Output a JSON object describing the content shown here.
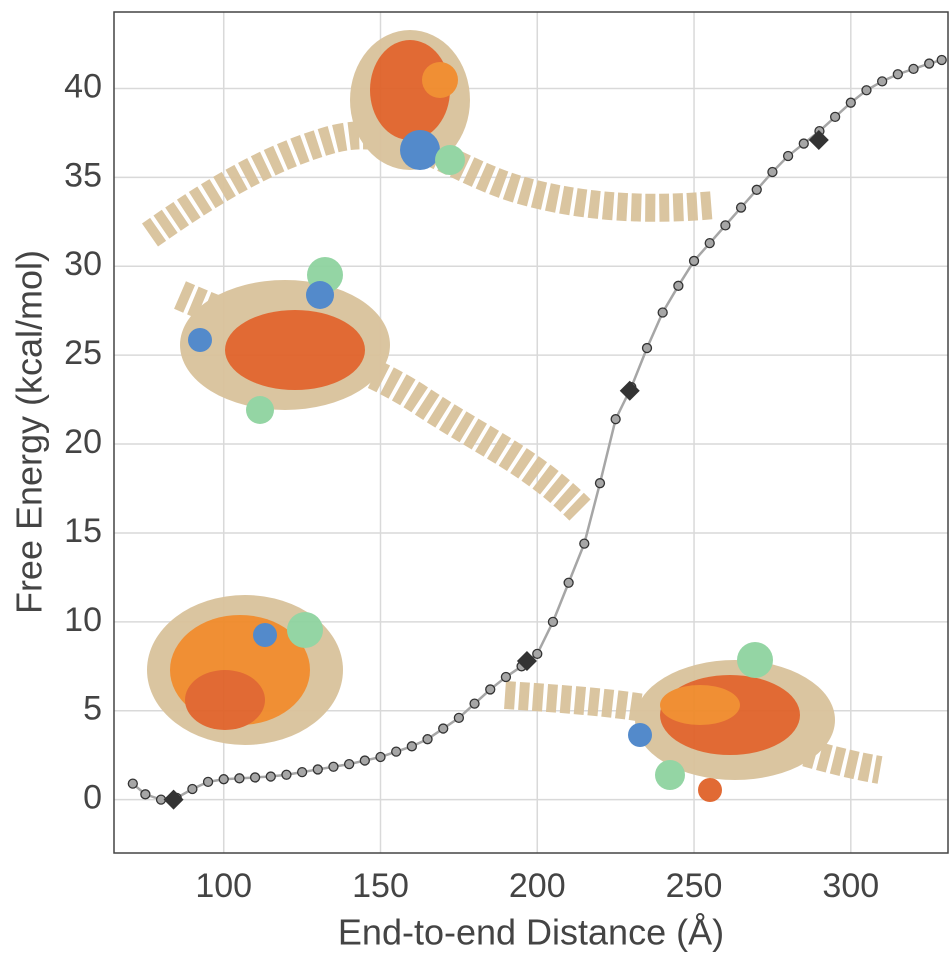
{
  "chart_data": {
    "type": "line",
    "xlabel": "End-to-end Distance (Å)",
    "ylabel": "Free Energy (kcal/mol)",
    "xlim": [
      65,
      331
    ],
    "ylim": [
      -3,
      44.3
    ],
    "xticks": [
      100,
      150,
      200,
      250,
      300
    ],
    "yticks": [
      0,
      5,
      10,
      15,
      20,
      25,
      30,
      35,
      40
    ],
    "grid": true,
    "series": [
      {
        "color": "#a6a6a6",
        "x": [
          71,
          75,
          80,
          85,
          90,
          95,
          100,
          105,
          110,
          115,
          120,
          125,
          130,
          135,
          140,
          145,
          150,
          155,
          160,
          165,
          170,
          175,
          180,
          185,
          190,
          195,
          200,
          205,
          210,
          215,
          220,
          225,
          230,
          235,
          240,
          245,
          250,
          255,
          260,
          265,
          270,
          275,
          280,
          285,
          290,
          295,
          300,
          305,
          310,
          315,
          320,
          325,
          329
        ],
        "values": [
          0.9,
          0.3,
          0.0,
          0.1,
          0.6,
          1.0,
          1.15,
          1.2,
          1.25,
          1.3,
          1.4,
          1.55,
          1.7,
          1.85,
          2.0,
          2.2,
          2.4,
          2.7,
          3.0,
          3.4,
          4.0,
          4.6,
          5.4,
          6.2,
          6.9,
          7.5,
          8.2,
          10.0,
          12.2,
          14.4,
          17.8,
          21.4,
          23.2,
          25.4,
          27.4,
          28.9,
          30.3,
          31.3,
          32.3,
          33.3,
          34.3,
          35.3,
          36.2,
          36.9,
          37.6,
          38.4,
          39.2,
          39.9,
          40.4,
          40.8,
          41.1,
          41.4,
          41.6
        ]
      },
      {
        "color": "#333333",
        "marker": "diamond",
        "x": [
          84,
          196.7,
          229.5,
          289.8
        ],
        "values": [
          0.0,
          7.8,
          23.0,
          37.1
        ]
      }
    ]
  }
}
